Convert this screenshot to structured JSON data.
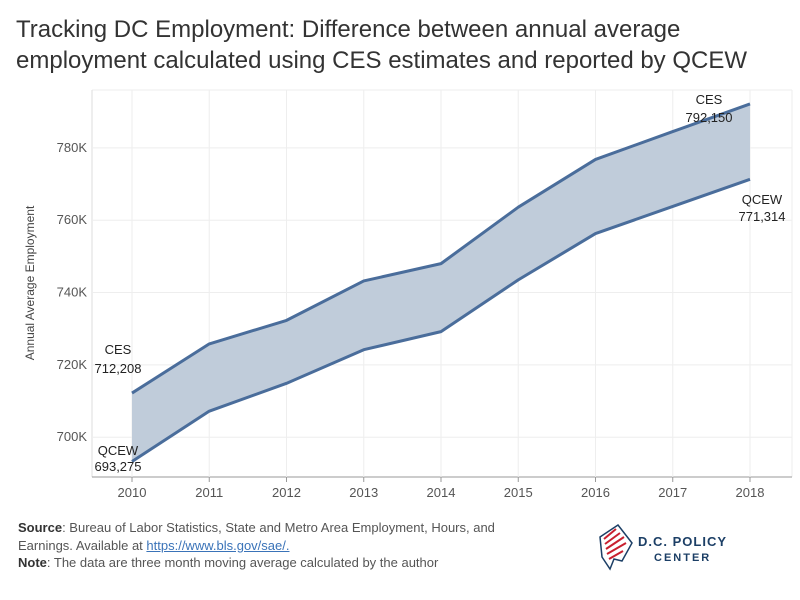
{
  "title": "Tracking DC Employment: Difference between annual average employment calculated using CES estimates and reported by QCEW",
  "colors": {
    "line": "#4a6d9b",
    "band": "#c0ccda",
    "grid": "#eeeeee",
    "axis": "#999999",
    "link": "#3a73b8",
    "logo_navy": "#1c3f66",
    "logo_red": "#c8202f"
  },
  "chart_data": {
    "type": "area",
    "title": "Tracking DC Employment: Difference between annual average employment calculated using CES estimates and reported by QCEW",
    "xlabel": "",
    "ylabel": "Annual Average Employment",
    "categories": [
      "2010",
      "2011",
      "2012",
      "2013",
      "2014",
      "2015",
      "2016",
      "2017",
      "2018"
    ],
    "y_ticks": [
      700000,
      720000,
      740000,
      760000,
      780000
    ],
    "y_tick_labels": [
      "700K",
      "720K",
      "740K",
      "760K",
      "780K"
    ],
    "ylim": [
      689000,
      796000
    ],
    "grid": true,
    "series": [
      {
        "name": "CES",
        "values": [
          712208,
          725800,
          732300,
          743200,
          748000,
          763600,
          776800,
          784500,
          792150
        ]
      },
      {
        "name": "QCEW",
        "values": [
          693275,
          707200,
          714900,
          724200,
          729200,
          743500,
          756300,
          763800,
          771314
        ]
      }
    ],
    "annotations": [
      {
        "label": "CES",
        "value": "712,208"
      },
      {
        "label": "QCEW",
        "value": "693,275"
      },
      {
        "label": "CES",
        "value": "792,150"
      },
      {
        "label": "QCEW",
        "value": "771,314"
      }
    ]
  },
  "footer": {
    "source_label": "Source",
    "source_text": ": Bureau of Labor Statistics, State and Metro Area Employment, Hours, and Earnings. Available at ",
    "source_link": "https://www.bls.gov/sae/.",
    "note_label": "Note",
    "note_text": ": The data are three month moving average calculated by the author"
  },
  "logo": {
    "line1": "D.C. POLICY",
    "line2": "CENTER"
  }
}
